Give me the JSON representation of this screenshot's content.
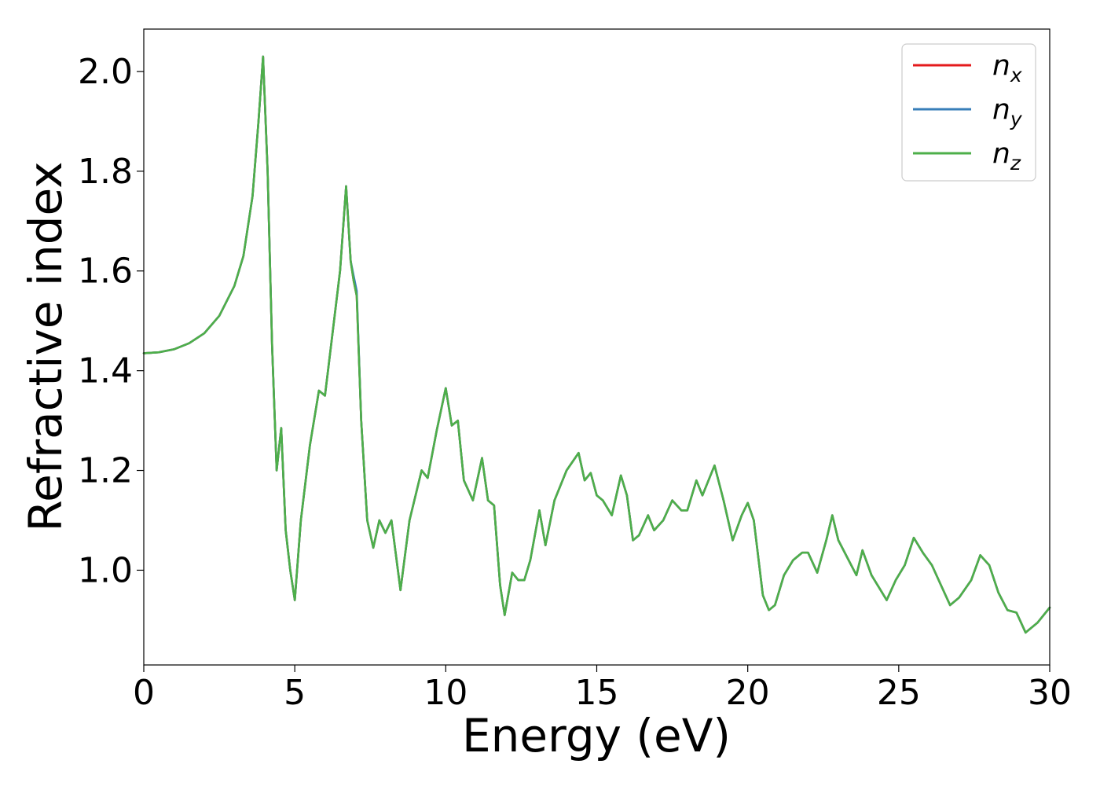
{
  "chart_data": {
    "type": "line",
    "title": "",
    "xlabel": "Energy (eV)",
    "ylabel": "Refractive index",
    "xlim": [
      0,
      30
    ],
    "ylim": [
      0.81,
      2.085
    ],
    "xticks": [
      0,
      5,
      10,
      15,
      20,
      25,
      30
    ],
    "xtick_labels": [
      "0",
      "5",
      "10",
      "15",
      "20",
      "25",
      "30"
    ],
    "yticks": [
      1.0,
      1.2,
      1.4,
      1.6,
      1.8,
      2.0
    ],
    "ytick_labels": [
      "1.0",
      "1.2",
      "1.4",
      "1.6",
      "1.8",
      "2.0"
    ],
    "grid": false,
    "legend_position": "top-right",
    "x": [
      0,
      0.5,
      1.0,
      1.5,
      2.0,
      2.5,
      3.0,
      3.3,
      3.6,
      3.8,
      3.95,
      4.1,
      4.25,
      4.4,
      4.55,
      4.7,
      4.85,
      5.0,
      5.2,
      5.5,
      5.8,
      6.0,
      6.2,
      6.5,
      6.7,
      6.85,
      6.95,
      7.05,
      7.2,
      7.4,
      7.6,
      7.8,
      8.0,
      8.2,
      8.5,
      8.8,
      9.2,
      9.4,
      9.7,
      10.0,
      10.2,
      10.4,
      10.6,
      10.9,
      11.2,
      11.4,
      11.6,
      11.8,
      11.95,
      12.2,
      12.4,
      12.6,
      12.8,
      13.1,
      13.3,
      13.6,
      14.0,
      14.4,
      14.6,
      14.8,
      15.0,
      15.2,
      15.5,
      15.8,
      16.0,
      16.2,
      16.4,
      16.7,
      16.9,
      17.2,
      17.5,
      17.8,
      18.0,
      18.3,
      18.5,
      18.9,
      19.2,
      19.5,
      19.8,
      20.0,
      20.2,
      20.5,
      20.7,
      20.9,
      21.2,
      21.5,
      21.8,
      22.0,
      22.3,
      22.6,
      22.8,
      23.0,
      23.3,
      23.6,
      23.8,
      24.1,
      24.4,
      24.6,
      24.9,
      25.2,
      25.5,
      25.8,
      26.1,
      26.4,
      26.7,
      27.0,
      27.4,
      27.7,
      28.0,
      28.3,
      28.6,
      28.9,
      29.2,
      29.6,
      30.0
    ],
    "series": [
      {
        "name": "n_x",
        "label_base": "n",
        "label_sub": "x",
        "color": "#e41a1c",
        "y": [
          1.435,
          1.437,
          1.443,
          1.455,
          1.475,
          1.51,
          1.57,
          1.63,
          1.75,
          1.9,
          2.03,
          1.8,
          1.45,
          1.2,
          1.285,
          1.08,
          1.0,
          0.94,
          1.1,
          1.25,
          1.36,
          1.35,
          1.45,
          1.6,
          1.77,
          1.62,
          1.58,
          1.55,
          1.3,
          1.1,
          1.045,
          1.1,
          1.075,
          1.1,
          0.96,
          1.1,
          1.2,
          1.185,
          1.28,
          1.365,
          1.29,
          1.3,
          1.18,
          1.14,
          1.225,
          1.14,
          1.13,
          0.97,
          0.91,
          0.995,
          0.98,
          0.98,
          1.02,
          1.12,
          1.05,
          1.14,
          1.2,
          1.235,
          1.18,
          1.195,
          1.15,
          1.14,
          1.11,
          1.19,
          1.15,
          1.06,
          1.07,
          1.11,
          1.08,
          1.1,
          1.14,
          1.12,
          1.12,
          1.18,
          1.15,
          1.21,
          1.14,
          1.06,
          1.11,
          1.135,
          1.1,
          0.95,
          0.92,
          0.93,
          0.99,
          1.02,
          1.035,
          1.035,
          0.995,
          1.06,
          1.11,
          1.06,
          1.025,
          0.99,
          1.04,
          0.99,
          0.96,
          0.94,
          0.98,
          1.01,
          1.065,
          1.035,
          1.01,
          0.97,
          0.93,
          0.945,
          0.98,
          1.03,
          1.01,
          0.955,
          0.92,
          0.915,
          0.875,
          0.895,
          0.925
        ]
      },
      {
        "name": "n_y",
        "label_base": "n",
        "label_sub": "y",
        "color": "#377eb8",
        "y": [
          1.435,
          1.437,
          1.443,
          1.455,
          1.475,
          1.51,
          1.57,
          1.63,
          1.75,
          1.9,
          2.03,
          1.8,
          1.45,
          1.2,
          1.285,
          1.08,
          1.0,
          0.94,
          1.1,
          1.25,
          1.36,
          1.35,
          1.45,
          1.6,
          1.77,
          1.62,
          1.59,
          1.56,
          1.3,
          1.1,
          1.045,
          1.1,
          1.075,
          1.1,
          0.96,
          1.1,
          1.2,
          1.185,
          1.28,
          1.365,
          1.29,
          1.3,
          1.18,
          1.14,
          1.225,
          1.14,
          1.13,
          0.97,
          0.91,
          0.995,
          0.98,
          0.98,
          1.02,
          1.12,
          1.05,
          1.14,
          1.2,
          1.235,
          1.18,
          1.195,
          1.15,
          1.14,
          1.11,
          1.19,
          1.15,
          1.06,
          1.07,
          1.11,
          1.08,
          1.1,
          1.14,
          1.12,
          1.12,
          1.18,
          1.15,
          1.21,
          1.14,
          1.06,
          1.11,
          1.135,
          1.1,
          0.95,
          0.92,
          0.93,
          0.99,
          1.02,
          1.035,
          1.035,
          0.995,
          1.06,
          1.11,
          1.06,
          1.025,
          0.99,
          1.04,
          0.99,
          0.96,
          0.94,
          0.98,
          1.01,
          1.065,
          1.035,
          1.01,
          0.97,
          0.93,
          0.945,
          0.98,
          1.03,
          1.01,
          0.955,
          0.92,
          0.915,
          0.875,
          0.895,
          0.925
        ]
      },
      {
        "name": "n_z",
        "label_base": "n",
        "label_sub": "z",
        "color": "#4daf4a",
        "y": [
          1.435,
          1.437,
          1.443,
          1.455,
          1.475,
          1.51,
          1.57,
          1.63,
          1.75,
          1.9,
          2.03,
          1.8,
          1.45,
          1.2,
          1.285,
          1.08,
          1.0,
          0.94,
          1.1,
          1.25,
          1.36,
          1.35,
          1.45,
          1.6,
          1.77,
          1.62,
          1.58,
          1.55,
          1.3,
          1.1,
          1.045,
          1.1,
          1.075,
          1.1,
          0.96,
          1.1,
          1.2,
          1.185,
          1.28,
          1.365,
          1.29,
          1.3,
          1.18,
          1.14,
          1.225,
          1.14,
          1.13,
          0.97,
          0.91,
          0.995,
          0.98,
          0.98,
          1.02,
          1.12,
          1.05,
          1.14,
          1.2,
          1.235,
          1.18,
          1.195,
          1.15,
          1.14,
          1.11,
          1.19,
          1.15,
          1.06,
          1.07,
          1.11,
          1.08,
          1.1,
          1.14,
          1.12,
          1.12,
          1.18,
          1.15,
          1.21,
          1.14,
          1.06,
          1.11,
          1.135,
          1.1,
          0.95,
          0.92,
          0.93,
          0.99,
          1.02,
          1.035,
          1.035,
          0.995,
          1.06,
          1.11,
          1.06,
          1.025,
          0.99,
          1.04,
          0.99,
          0.96,
          0.94,
          0.98,
          1.01,
          1.065,
          1.035,
          1.01,
          0.97,
          0.93,
          0.945,
          0.98,
          1.03,
          1.01,
          0.955,
          0.92,
          0.915,
          0.875,
          0.895,
          0.925
        ]
      }
    ]
  }
}
